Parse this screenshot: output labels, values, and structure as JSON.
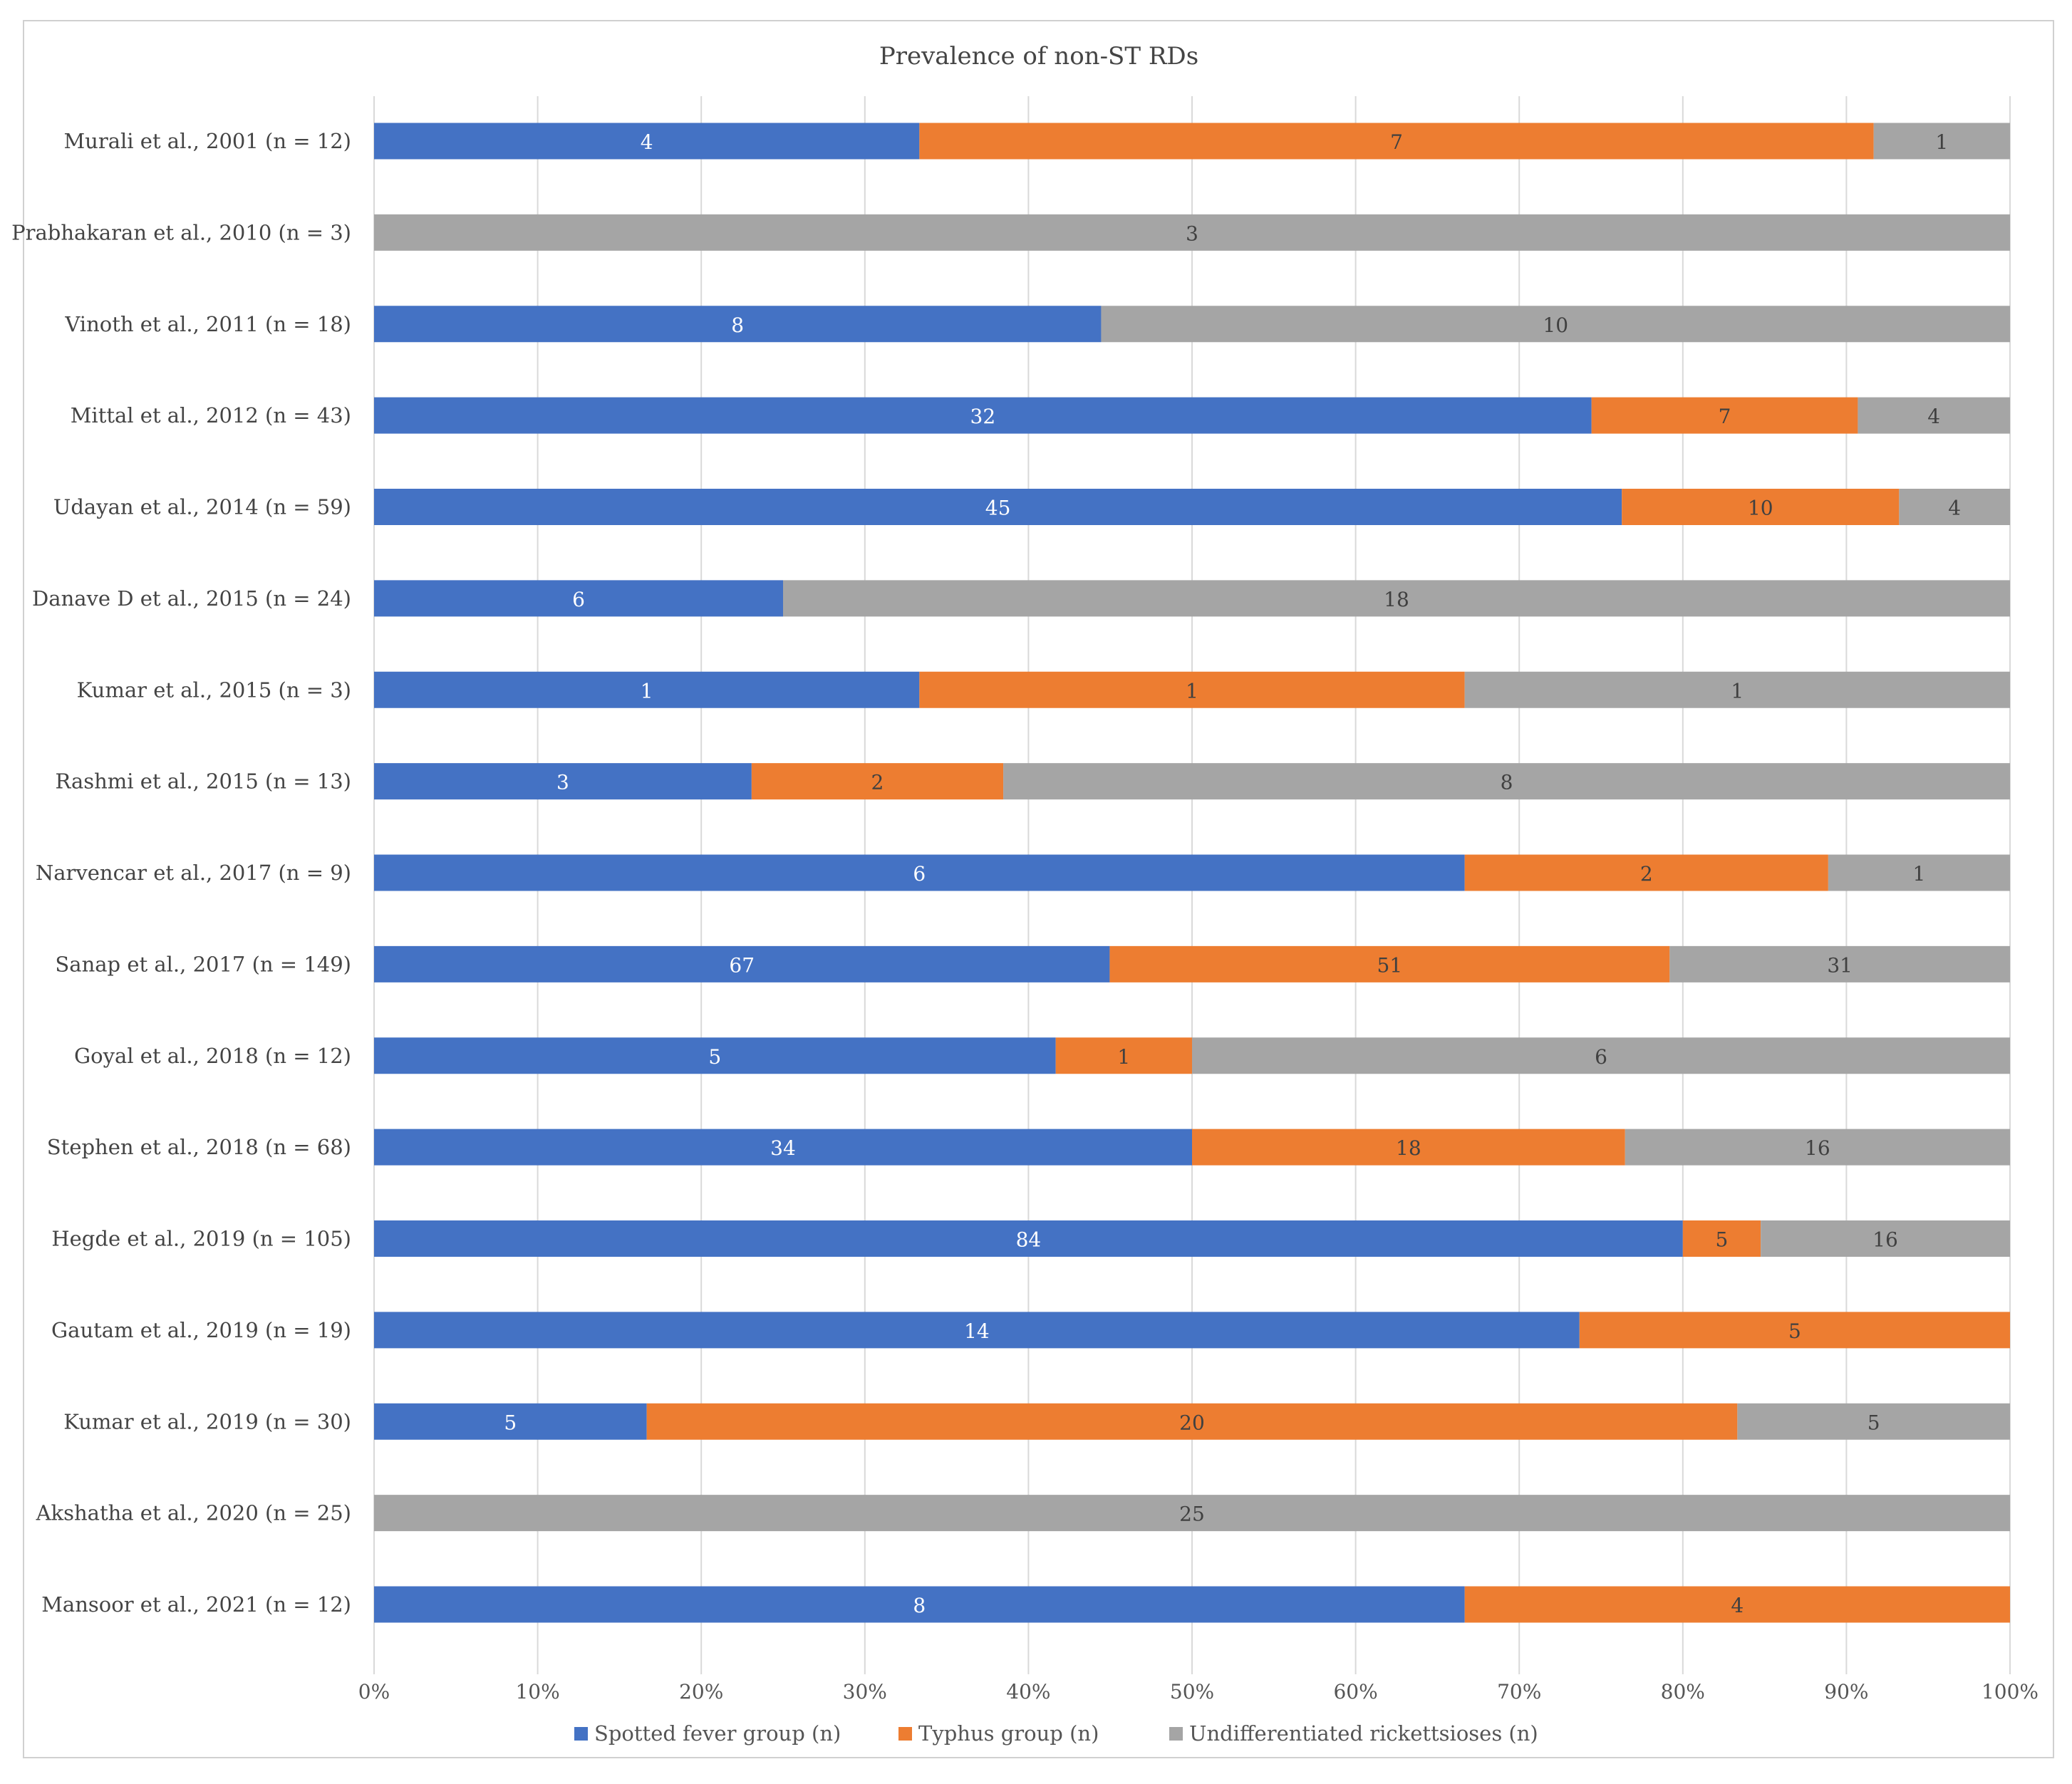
{
  "chart_data": {
    "type": "bar",
    "orientation": "horizontal",
    "stacked": "100%",
    "title": "Prevalence of non-ST RDs",
    "xlabel": "",
    "ylabel": "",
    "xlim": [
      0,
      100
    ],
    "x_tick_labels": [
      "0%",
      "10%",
      "20%",
      "30%",
      "40%",
      "50%",
      "60%",
      "70%",
      "80%",
      "90%",
      "100%"
    ],
    "grid": true,
    "legend_position": "bottom",
    "categories": [
      "Murali et al., 2001 (n = 12)",
      "Prabhakaran et al., 2010 (n = 3)",
      "Vinoth et al., 2011 (n = 18)",
      "Mittal et al., 2012 (n = 43)",
      "Udayan et al., 2014 (n = 59)",
      "Danave D et al., 2015 (n = 24)",
      "Kumar et al., 2015 (n = 3)",
      "Rashmi et al., 2015 (n = 13)",
      "Narvencar et al., 2017 (n = 9)",
      "Sanap et al., 2017 (n = 149)",
      "Goyal et al., 2018 (n = 12)",
      "Stephen et al., 2018 (n = 68)",
      "Hegde et al., 2019 (n = 105)",
      "Gautam et al., 2019 (n = 19)",
      "Kumar et al., 2019 (n = 30)",
      "Akshatha et al., 2020 (n = 25)",
      "Mansoor et al., 2021 (n = 12)"
    ],
    "series": [
      {
        "name": "Spotted fever group  (n)",
        "color": "#4472C4",
        "label_color": "#ffffff",
        "values": [
          4,
          0,
          8,
          32,
          45,
          6,
          1,
          3,
          6,
          67,
          5,
          34,
          84,
          14,
          5,
          0,
          8
        ]
      },
      {
        "name": "Typhus group  (n)",
        "color": "#ED7D31",
        "label_color": "#404040",
        "values": [
          7,
          0,
          0,
          7,
          10,
          0,
          1,
          2,
          2,
          51,
          1,
          18,
          5,
          5,
          20,
          0,
          4
        ]
      },
      {
        "name": "Undifferentiated rickettsioses (n)",
        "color": "#A5A5A5",
        "label_color": "#404040",
        "values": [
          1,
          3,
          10,
          4,
          4,
          18,
          1,
          8,
          1,
          31,
          6,
          16,
          16,
          0,
          5,
          25,
          0
        ]
      }
    ]
  }
}
